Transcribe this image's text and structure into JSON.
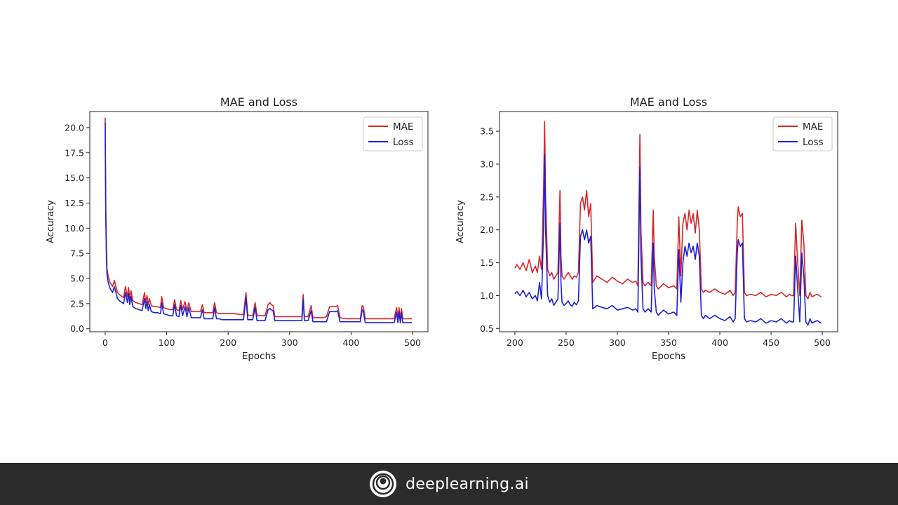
{
  "brand": {
    "name": "deeplearning.ai",
    "logo_icon": "deeplearning-ai-logo-icon"
  },
  "colors": {
    "mae": "#d62728",
    "loss": "#1f1fd6",
    "footer": "#2b2b2b"
  },
  "chart_data": [
    {
      "type": "line",
      "title": "MAE and Loss",
      "xlabel": "Epochs",
      "ylabel": "Accuracy",
      "xlim": [
        -25,
        525
      ],
      "ylim": [
        -0.3,
        21.6
      ],
      "xticks": [
        0,
        100,
        200,
        300,
        400,
        500
      ],
      "xtick_labels": [
        "0",
        "100",
        "200",
        "300",
        "400",
        "500"
      ],
      "yticks": [
        0,
        2.5,
        5,
        7.5,
        10,
        12.5,
        15,
        17.5,
        20
      ],
      "ytick_labels": [
        "0.0",
        "2.5",
        "5.0",
        "7.5",
        "10.0",
        "12.5",
        "15.0",
        "17.5",
        "20.0"
      ],
      "legend": "top-right",
      "grid": false,
      "series": [
        {
          "name": "MAE",
          "color": "#d62728",
          "x": [
            0,
            1,
            2,
            3,
            5,
            8,
            12,
            15,
            20,
            25,
            30,
            33,
            36,
            38,
            40,
            42,
            45,
            50,
            55,
            60,
            64,
            66,
            68,
            70,
            72,
            75,
            80,
            85,
            90,
            92,
            95,
            100,
            105,
            110,
            113,
            116,
            120,
            123,
            126,
            130,
            133,
            136,
            140,
            145,
            150,
            155,
            158,
            161,
            165,
            170,
            175,
            178,
            181,
            185,
            190,
            200,
            210,
            220,
            225,
            229,
            232,
            235,
            240,
            244,
            247,
            250,
            260,
            265,
            268,
            270,
            273,
            276,
            280,
            290,
            300,
            310,
            320,
            322,
            324,
            330,
            335,
            338,
            345,
            355,
            360,
            365,
            370,
            375,
            378,
            382,
            390,
            400,
            410,
            415,
            418,
            420,
            423,
            430,
            440,
            450,
            460,
            470,
            474,
            476,
            478,
            480,
            482,
            484,
            490,
            499
          ],
          "values": [
            21.0,
            12.0,
            8.0,
            6.0,
            5.2,
            4.6,
            4.2,
            4.8,
            3.6,
            3.3,
            3.1,
            4.2,
            3.2,
            4.1,
            3.0,
            3.8,
            2.8,
            2.6,
            2.5,
            2.4,
            3.6,
            2.6,
            3.3,
            2.4,
            3.0,
            2.3,
            2.2,
            2.2,
            2.1,
            3.2,
            2.1,
            2.0,
            1.9,
            1.9,
            2.9,
            1.9,
            1.8,
            2.8,
            1.9,
            2.7,
            1.8,
            2.6,
            1.7,
            1.7,
            1.7,
            1.7,
            2.4,
            1.6,
            1.6,
            1.6,
            1.6,
            2.6,
            1.6,
            1.5,
            1.5,
            1.5,
            1.5,
            1.4,
            1.4,
            3.6,
            1.4,
            1.3,
            1.3,
            2.6,
            1.3,
            1.3,
            1.3,
            2.4,
            2.6,
            2.4,
            2.3,
            1.2,
            1.2,
            1.2,
            1.2,
            1.2,
            1.2,
            3.4,
            1.2,
            1.2,
            2.3,
            1.1,
            1.1,
            1.1,
            1.2,
            2.2,
            2.2,
            2.2,
            2.3,
            1.1,
            1.0,
            1.0,
            1.0,
            1.0,
            2.3,
            2.2,
            1.0,
            1.0,
            1.0,
            1.0,
            1.0,
            1.0,
            2.1,
            1.0,
            2.1,
            1.0,
            2.0,
            1.0,
            1.0,
            1.0
          ]
        },
        {
          "name": "Loss",
          "color": "#1f1fd6",
          "x": [
            0,
            1,
            2,
            3,
            5,
            8,
            12,
            15,
            20,
            25,
            30,
            33,
            36,
            38,
            40,
            42,
            45,
            50,
            55,
            60,
            64,
            66,
            68,
            70,
            72,
            75,
            80,
            85,
            90,
            92,
            95,
            100,
            105,
            110,
            113,
            116,
            120,
            123,
            126,
            130,
            133,
            136,
            140,
            145,
            150,
            155,
            158,
            161,
            165,
            170,
            175,
            178,
            181,
            185,
            190,
            200,
            210,
            220,
            225,
            229,
            232,
            235,
            240,
            244,
            247,
            250,
            260,
            265,
            268,
            270,
            273,
            276,
            280,
            290,
            300,
            310,
            320,
            322,
            324,
            330,
            335,
            338,
            345,
            355,
            360,
            365,
            370,
            375,
            378,
            382,
            390,
            400,
            410,
            415,
            418,
            420,
            423,
            430,
            440,
            450,
            460,
            470,
            474,
            476,
            478,
            480,
            482,
            484,
            490,
            499
          ],
          "values": [
            20.5,
            11.0,
            7.0,
            5.4,
            4.6,
            4.0,
            3.6,
            4.2,
            3.0,
            2.7,
            2.5,
            3.6,
            2.6,
            3.5,
            2.4,
            3.2,
            2.2,
            2.0,
            1.9,
            1.8,
            3.0,
            2.0,
            2.7,
            1.8,
            2.4,
            1.7,
            1.6,
            1.6,
            1.5,
            2.6,
            1.5,
            1.4,
            1.3,
            1.3,
            2.4,
            1.3,
            1.2,
            2.3,
            1.3,
            2.2,
            1.2,
            2.1,
            1.1,
            1.1,
            1.1,
            1.1,
            1.9,
            1.0,
            1.0,
            1.0,
            1.0,
            2.1,
            1.0,
            1.0,
            0.9,
            0.9,
            0.9,
            0.9,
            0.9,
            3.1,
            0.9,
            0.9,
            0.9,
            2.1,
            0.8,
            0.8,
            0.8,
            1.9,
            2.0,
            1.9,
            1.8,
            0.8,
            0.8,
            0.8,
            0.8,
            0.8,
            0.8,
            2.9,
            0.8,
            0.8,
            1.8,
            0.7,
            0.7,
            0.7,
            0.7,
            1.7,
            1.7,
            1.7,
            1.8,
            0.7,
            0.7,
            0.7,
            0.7,
            0.7,
            1.9,
            1.7,
            0.6,
            0.6,
            0.6,
            0.6,
            0.6,
            0.6,
            1.6,
            0.6,
            1.7,
            0.6,
            1.6,
            0.6,
            0.6,
            0.6
          ]
        }
      ]
    },
    {
      "type": "line",
      "title": "MAE and Loss",
      "xlabel": "Epochs",
      "ylabel": "Accuracy",
      "xlim": [
        185,
        515
      ],
      "ylim": [
        0.45,
        3.8
      ],
      "xticks": [
        200,
        250,
        300,
        350,
        400,
        450,
        500
      ],
      "xtick_labels": [
        "200",
        "250",
        "300",
        "350",
        "400",
        "450",
        "500"
      ],
      "yticks": [
        0.5,
        1.0,
        1.5,
        2.0,
        2.5,
        3.0,
        3.5
      ],
      "ytick_labels": [
        "0.5",
        "1.0",
        "1.5",
        "2.0",
        "2.5",
        "3.0",
        "3.5"
      ],
      "legend": "top-right",
      "grid": false,
      "series": [
        {
          "name": "MAE",
          "color": "#d62728",
          "x": [
            200,
            202,
            205,
            208,
            211,
            214,
            217,
            220,
            222,
            224,
            226,
            228,
            229,
            230,
            232,
            234,
            236,
            238,
            240,
            242,
            244,
            245,
            246,
            248,
            250,
            252,
            254,
            256,
            258,
            260,
            262,
            264,
            266,
            268,
            270,
            272,
            274,
            276,
            278,
            280,
            285,
            290,
            295,
            300,
            305,
            310,
            315,
            318,
            320,
            321,
            322,
            323,
            325,
            327,
            330,
            333,
            335,
            336,
            338,
            340,
            345,
            350,
            355,
            358,
            360,
            362,
            364,
            366,
            368,
            370,
            372,
            374,
            376,
            378,
            380,
            382,
            384,
            386,
            390,
            395,
            400,
            405,
            410,
            413,
            415,
            417,
            418,
            420,
            422,
            424,
            426,
            430,
            435,
            440,
            445,
            450,
            455,
            460,
            465,
            468,
            470,
            472,
            474,
            476,
            478,
            480,
            482,
            484,
            486,
            488,
            490,
            492,
            495,
            499
          ],
          "values": [
            1.42,
            1.47,
            1.4,
            1.5,
            1.38,
            1.55,
            1.35,
            1.45,
            1.35,
            1.6,
            1.4,
            2.6,
            3.65,
            2.5,
            1.4,
            1.3,
            1.35,
            1.25,
            1.3,
            1.35,
            2.6,
            1.6,
            1.3,
            1.25,
            1.3,
            1.35,
            1.3,
            1.25,
            1.3,
            1.28,
            1.35,
            2.4,
            2.5,
            2.3,
            2.6,
            2.2,
            2.4,
            1.2,
            1.25,
            1.3,
            1.25,
            1.2,
            1.28,
            1.22,
            1.18,
            1.25,
            1.2,
            1.22,
            1.15,
            2.2,
            3.45,
            2.0,
            1.2,
            1.15,
            1.2,
            1.15,
            2.3,
            1.6,
            1.15,
            1.1,
            1.18,
            1.12,
            1.15,
            1.1,
            2.2,
            1.3,
            2.1,
            2.25,
            2.0,
            2.3,
            2.1,
            2.25,
            1.95,
            2.3,
            2.0,
            1.1,
            1.05,
            1.08,
            1.05,
            1.1,
            1.05,
            1.02,
            1.08,
            1.0,
            1.05,
            2.1,
            2.35,
            2.2,
            2.25,
            1.05,
            1.0,
            1.02,
            1.0,
            1.05,
            0.98,
            1.02,
            1.0,
            1.05,
            0.98,
            1.02,
            1.0,
            1.0,
            2.1,
            1.5,
            1.0,
            2.15,
            1.8,
            1.0,
            0.95,
            1.05,
            0.98,
            1.0,
            1.02,
            0.98
          ]
        },
        {
          "name": "Loss",
          "color": "#1f1fd6",
          "x": [
            200,
            202,
            205,
            208,
            211,
            214,
            217,
            220,
            222,
            224,
            226,
            228,
            229,
            230,
            232,
            234,
            236,
            238,
            240,
            242,
            244,
            245,
            246,
            248,
            250,
            252,
            254,
            256,
            258,
            260,
            262,
            264,
            266,
            268,
            270,
            272,
            274,
            276,
            278,
            280,
            285,
            290,
            295,
            300,
            305,
            310,
            315,
            318,
            320,
            321,
            322,
            323,
            325,
            327,
            330,
            333,
            335,
            336,
            338,
            340,
            345,
            350,
            355,
            358,
            360,
            362,
            364,
            366,
            368,
            370,
            372,
            374,
            376,
            378,
            380,
            382,
            384,
            386,
            390,
            395,
            400,
            405,
            410,
            413,
            415,
            417,
            418,
            420,
            422,
            424,
            426,
            430,
            435,
            440,
            445,
            450,
            455,
            460,
            465,
            468,
            470,
            472,
            474,
            476,
            478,
            480,
            482,
            484,
            486,
            488,
            490,
            492,
            495,
            499
          ],
          "values": [
            1.03,
            1.06,
            1.0,
            1.08,
            0.98,
            1.05,
            0.95,
            1.0,
            0.92,
            1.2,
            0.95,
            2.0,
            3.15,
            2.0,
            1.0,
            0.9,
            0.95,
            0.85,
            0.9,
            0.95,
            2.1,
            1.2,
            0.9,
            0.85,
            0.88,
            0.92,
            0.86,
            0.84,
            0.9,
            0.86,
            0.92,
            1.9,
            2.0,
            1.85,
            2.0,
            1.8,
            1.9,
            0.8,
            0.82,
            0.85,
            0.82,
            0.8,
            0.85,
            0.78,
            0.8,
            0.82,
            0.78,
            0.8,
            0.75,
            1.8,
            2.95,
            1.6,
            0.8,
            0.75,
            0.8,
            0.75,
            1.8,
            1.1,
            0.75,
            0.7,
            0.78,
            0.72,
            0.75,
            0.7,
            1.7,
            0.9,
            1.5,
            1.75,
            1.6,
            1.8,
            1.65,
            1.75,
            1.55,
            1.8,
            1.6,
            0.7,
            0.65,
            0.7,
            0.65,
            0.7,
            0.65,
            0.62,
            0.68,
            0.6,
            0.65,
            1.65,
            1.85,
            1.75,
            1.8,
            0.65,
            0.6,
            0.62,
            0.6,
            0.65,
            0.58,
            0.62,
            0.6,
            0.65,
            0.58,
            0.62,
            0.6,
            0.6,
            1.6,
            1.1,
            0.6,
            1.65,
            1.3,
            0.6,
            0.55,
            0.65,
            0.58,
            0.6,
            0.62,
            0.58
          ]
        }
      ]
    }
  ]
}
